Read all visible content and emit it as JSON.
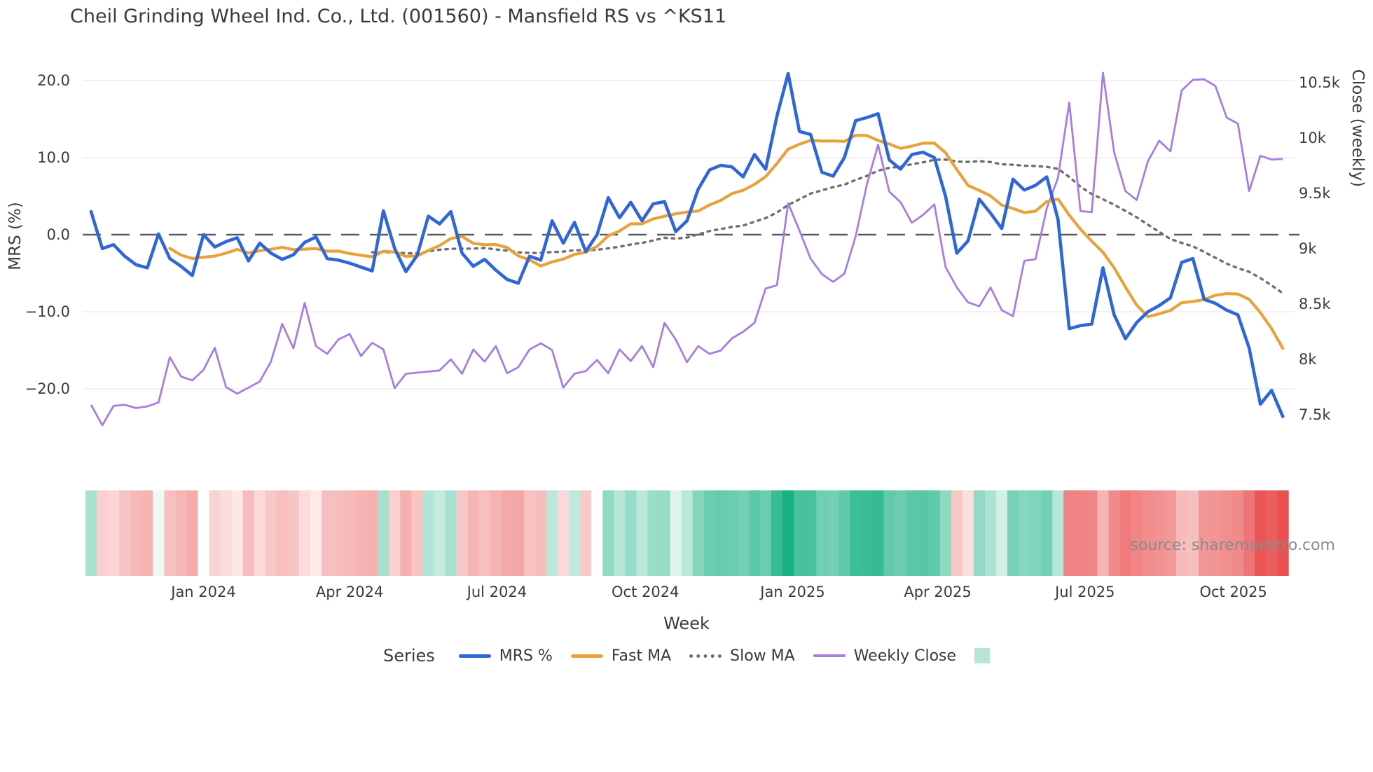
{
  "title": "Cheil Grinding Wheel Ind. Co., Ltd. (001560) - Mansfield RS vs ^KS11",
  "source_note": "source: sharemaestro.com",
  "axes": {
    "left_label": "MRS (%)",
    "right_label": "Close (weekly)",
    "x_label": "Week",
    "left_ticks": [
      {
        "value": 20,
        "label": "20.0"
      },
      {
        "value": 10,
        "label": "10.0"
      },
      {
        "value": 0,
        "label": "0.0"
      },
      {
        "value": -10,
        "label": "−10.0"
      },
      {
        "value": -20,
        "label": "−20.0"
      }
    ],
    "right_ticks": [
      {
        "value": 10500,
        "label": "10.5k"
      },
      {
        "value": 10000,
        "label": "10k"
      },
      {
        "value": 9500,
        "label": "9.5k"
      },
      {
        "value": 9000,
        "label": "9k"
      },
      {
        "value": 8500,
        "label": "8.5k"
      },
      {
        "value": 8000,
        "label": "8k"
      },
      {
        "value": 7500,
        "label": "7.5k"
      }
    ],
    "x_ticks": [
      {
        "label": "Jan 2024",
        "week_index": 10.0
      },
      {
        "label": "Apr 2024",
        "week_index": 23.0
      },
      {
        "label": "Jul 2024",
        "week_index": 36.1
      },
      {
        "label": "Oct 2024",
        "week_index": 49.3
      },
      {
        "label": "Jan 2025",
        "week_index": 62.4
      },
      {
        "label": "Apr 2025",
        "week_index": 75.3
      },
      {
        "label": "Jul 2025",
        "week_index": 88.4
      },
      {
        "label": "Oct 2025",
        "week_index": 101.6
      }
    ]
  },
  "legend": {
    "title": "Series",
    "items": [
      {
        "label": "MRS %",
        "swatch": "line",
        "color": "#2f66d8"
      },
      {
        "label": "Fast MA",
        "swatch": "line",
        "color": "#e9a13b"
      },
      {
        "label": "Slow MA",
        "swatch": "dots",
        "color": "#6f6f6f"
      },
      {
        "label": "Weekly Close",
        "swatch": "line",
        "color": "#a87de0"
      },
      {
        "label": "",
        "swatch": "square",
        "color": "#b7e7d2"
      }
    ]
  },
  "colors": {
    "mrs": "#2f66d8",
    "fast_ma": "#e9a13b",
    "slow_ma": "#6f6f6f",
    "weekly_close": "#a87de0",
    "zero_line": "#5a5a66",
    "gridline": "#ebebf2",
    "heat_positive": "#17b183",
    "heat_negative": "#e94f4f",
    "heat_legend_swatch": "#b7e7d2",
    "text": "#3a3a3a",
    "tick_text": "#3b3b3b",
    "source_text": "#8b8b8b",
    "background": "#ffffff"
  },
  "chart_data": {
    "type": "line",
    "x_axis": {
      "label": "Week",
      "start_week": "2023-10-23",
      "n_weeks": 107,
      "frequency": "weekly"
    },
    "left_axis": {
      "label": "MRS (%)",
      "range": [
        -27,
        24
      ],
      "zero_line": "dashed"
    },
    "right_axis": {
      "label": "Close (weekly)",
      "range": [
        7350,
        10620
      ]
    },
    "grid": "horizontal-only",
    "legend_position": "bottom-center",
    "series": [
      {
        "name": "MRS %",
        "axis": "left",
        "style": "solid",
        "color": "#2f66d8",
        "values": [
          3.0,
          -1.8,
          -1.3,
          -2.8,
          -3.9,
          -4.3,
          0.1,
          -3.1,
          -4.1,
          -5.3,
          0.0,
          -1.6,
          -0.9,
          -0.4,
          -3.4,
          -1.1,
          -2.4,
          -3.2,
          -2.6,
          -1.0,
          -0.3,
          -3.1,
          -3.3,
          -3.7,
          -4.2,
          -4.7,
          3.1,
          -1.8,
          -4.8,
          -2.7,
          2.4,
          1.4,
          3.0,
          -2.4,
          -4.1,
          -3.2,
          -4.6,
          -5.8,
          -6.3,
          -2.8,
          -3.3,
          1.8,
          -1.1,
          1.6,
          -2.2,
          0.0,
          4.8,
          2.2,
          4.2,
          1.8,
          4.0,
          4.3,
          0.4,
          1.8,
          5.9,
          8.4,
          9.0,
          8.8,
          7.5,
          10.4,
          8.5,
          15.4,
          20.9,
          13.4,
          13.0,
          8.1,
          7.6,
          10.0,
          14.8,
          15.2,
          15.7,
          9.7,
          8.5,
          10.4,
          10.7,
          10.0,
          5.0,
          -2.4,
          -0.8,
          4.6,
          2.8,
          0.8,
          7.2,
          5.8,
          6.4,
          7.5,
          2.0,
          -12.2,
          -11.8,
          -11.6,
          -4.3,
          -10.4,
          -13.5,
          -11.4,
          -10.0,
          -9.2,
          -8.2,
          -3.6,
          -3.1,
          -8.4,
          -8.9,
          -9.8,
          -10.4,
          -14.7,
          -22.0,
          -20.2,
          -23.6
        ]
      },
      {
        "name": "Fast MA",
        "axis": "left",
        "style": "solid",
        "color": "#e9a13b",
        "derived": "moving_average_of_MRS",
        "window": 8
      },
      {
        "name": "Slow MA",
        "axis": "left",
        "style": "dotted",
        "color": "#6f6f6f",
        "derived": "moving_average_of_MRS",
        "window": 26
      },
      {
        "name": "Weekly Close",
        "axis": "right",
        "style": "solid",
        "color": "#a87de0",
        "values": [
          7590,
          7405,
          7580,
          7590,
          7560,
          7575,
          7610,
          8020,
          7845,
          7810,
          7905,
          8105,
          7750,
          7690,
          7745,
          7800,
          7980,
          8320,
          8100,
          8510,
          8120,
          8050,
          8180,
          8230,
          8030,
          8150,
          8090,
          7740,
          7870,
          7880,
          7890,
          7900,
          8000,
          7870,
          8090,
          7980,
          8120,
          7875,
          7930,
          8090,
          8145,
          8085,
          7745,
          7870,
          7895,
          7995,
          7875,
          8090,
          7985,
          8120,
          7930,
          8330,
          8180,
          7975,
          8120,
          8050,
          8080,
          8190,
          8250,
          8330,
          8640,
          8670,
          9410,
          9165,
          8910,
          8770,
          8700,
          8775,
          9110,
          9580,
          9940,
          9515,
          9420,
          9235,
          9305,
          9400,
          8835,
          8650,
          8515,
          8480,
          8650,
          8445,
          8390,
          8890,
          8905,
          9365,
          9640,
          10320,
          9340,
          9330,
          10590,
          9870,
          9520,
          9440,
          9790,
          9975,
          9880,
          10430,
          10525,
          10530,
          10470,
          10185,
          10130,
          9520,
          9840,
          9805,
          9810
        ]
      }
    ],
    "heatmap_strip": {
      "description": "weekly color band below chart, color-coded by MRS % value",
      "source_series": "MRS %",
      "positive_color": "#17b183",
      "negative_color": "#e94f4f",
      "positive_scale_max": 21,
      "negative_scale_max": 24
    }
  }
}
